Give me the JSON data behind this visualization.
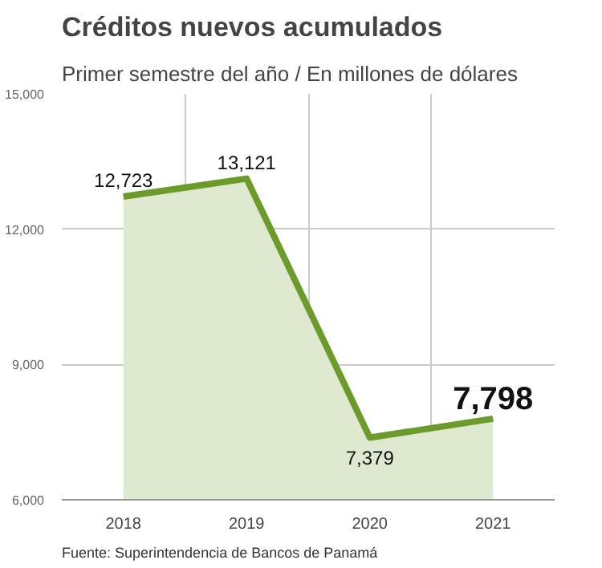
{
  "chart_data": {
    "type": "area",
    "title": "Créditos nuevos acumulados",
    "subtitle": "Primer semestre del año / En millones de dólares",
    "categories": [
      "2018",
      "2019",
      "2020",
      "2021"
    ],
    "series": [
      {
        "color": "#6b9b2a",
        "values": [
          12723,
          13121,
          7379,
          7798
        ],
        "value_labels": [
          "12,723",
          "13,121",
          "7,379",
          "7,798"
        ]
      }
    ],
    "ylim": [
      6000,
      15000
    ],
    "yticks": [
      {
        "value": 6000,
        "label": "6,000"
      },
      {
        "value": 9000,
        "label": "9,000"
      },
      {
        "value": 12000,
        "label": "12,000"
      },
      {
        "value": 15000,
        "label": "15,000"
      }
    ],
    "grid": true,
    "annotations": [
      "Fuente: Superintendencia de Bancos de Panamá"
    ]
  }
}
